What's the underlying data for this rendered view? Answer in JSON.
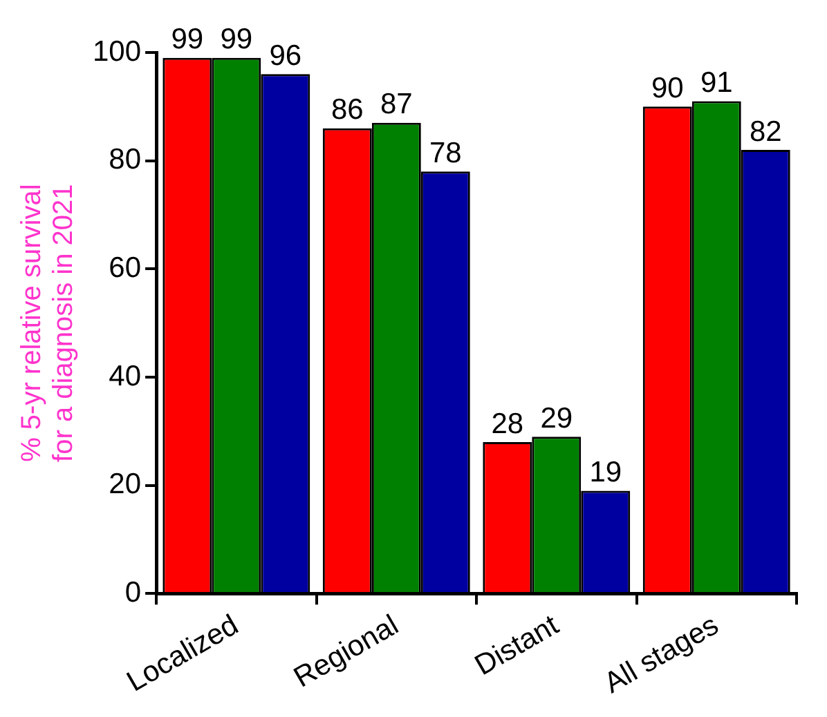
{
  "chart_data": {
    "type": "bar",
    "ylabel": "% 5-yr relative survival for a diagnosis in 2021",
    "categories": [
      "Localized",
      "Regional",
      "Distant",
      "All stages"
    ],
    "series": [
      {
        "color": "#ff0000",
        "values": [
          99,
          86,
          28,
          90
        ]
      },
      {
        "color": "#008000",
        "values": [
          99,
          87,
          29,
          91
        ]
      },
      {
        "color": "#0000a0",
        "values": [
          96,
          78,
          19,
          82
        ]
      }
    ],
    "ylim": [
      0,
      100
    ],
    "yticks": [
      0,
      20,
      40,
      60,
      80,
      100
    ],
    "grid": false,
    "legend": false,
    "data_labels": true
  }
}
